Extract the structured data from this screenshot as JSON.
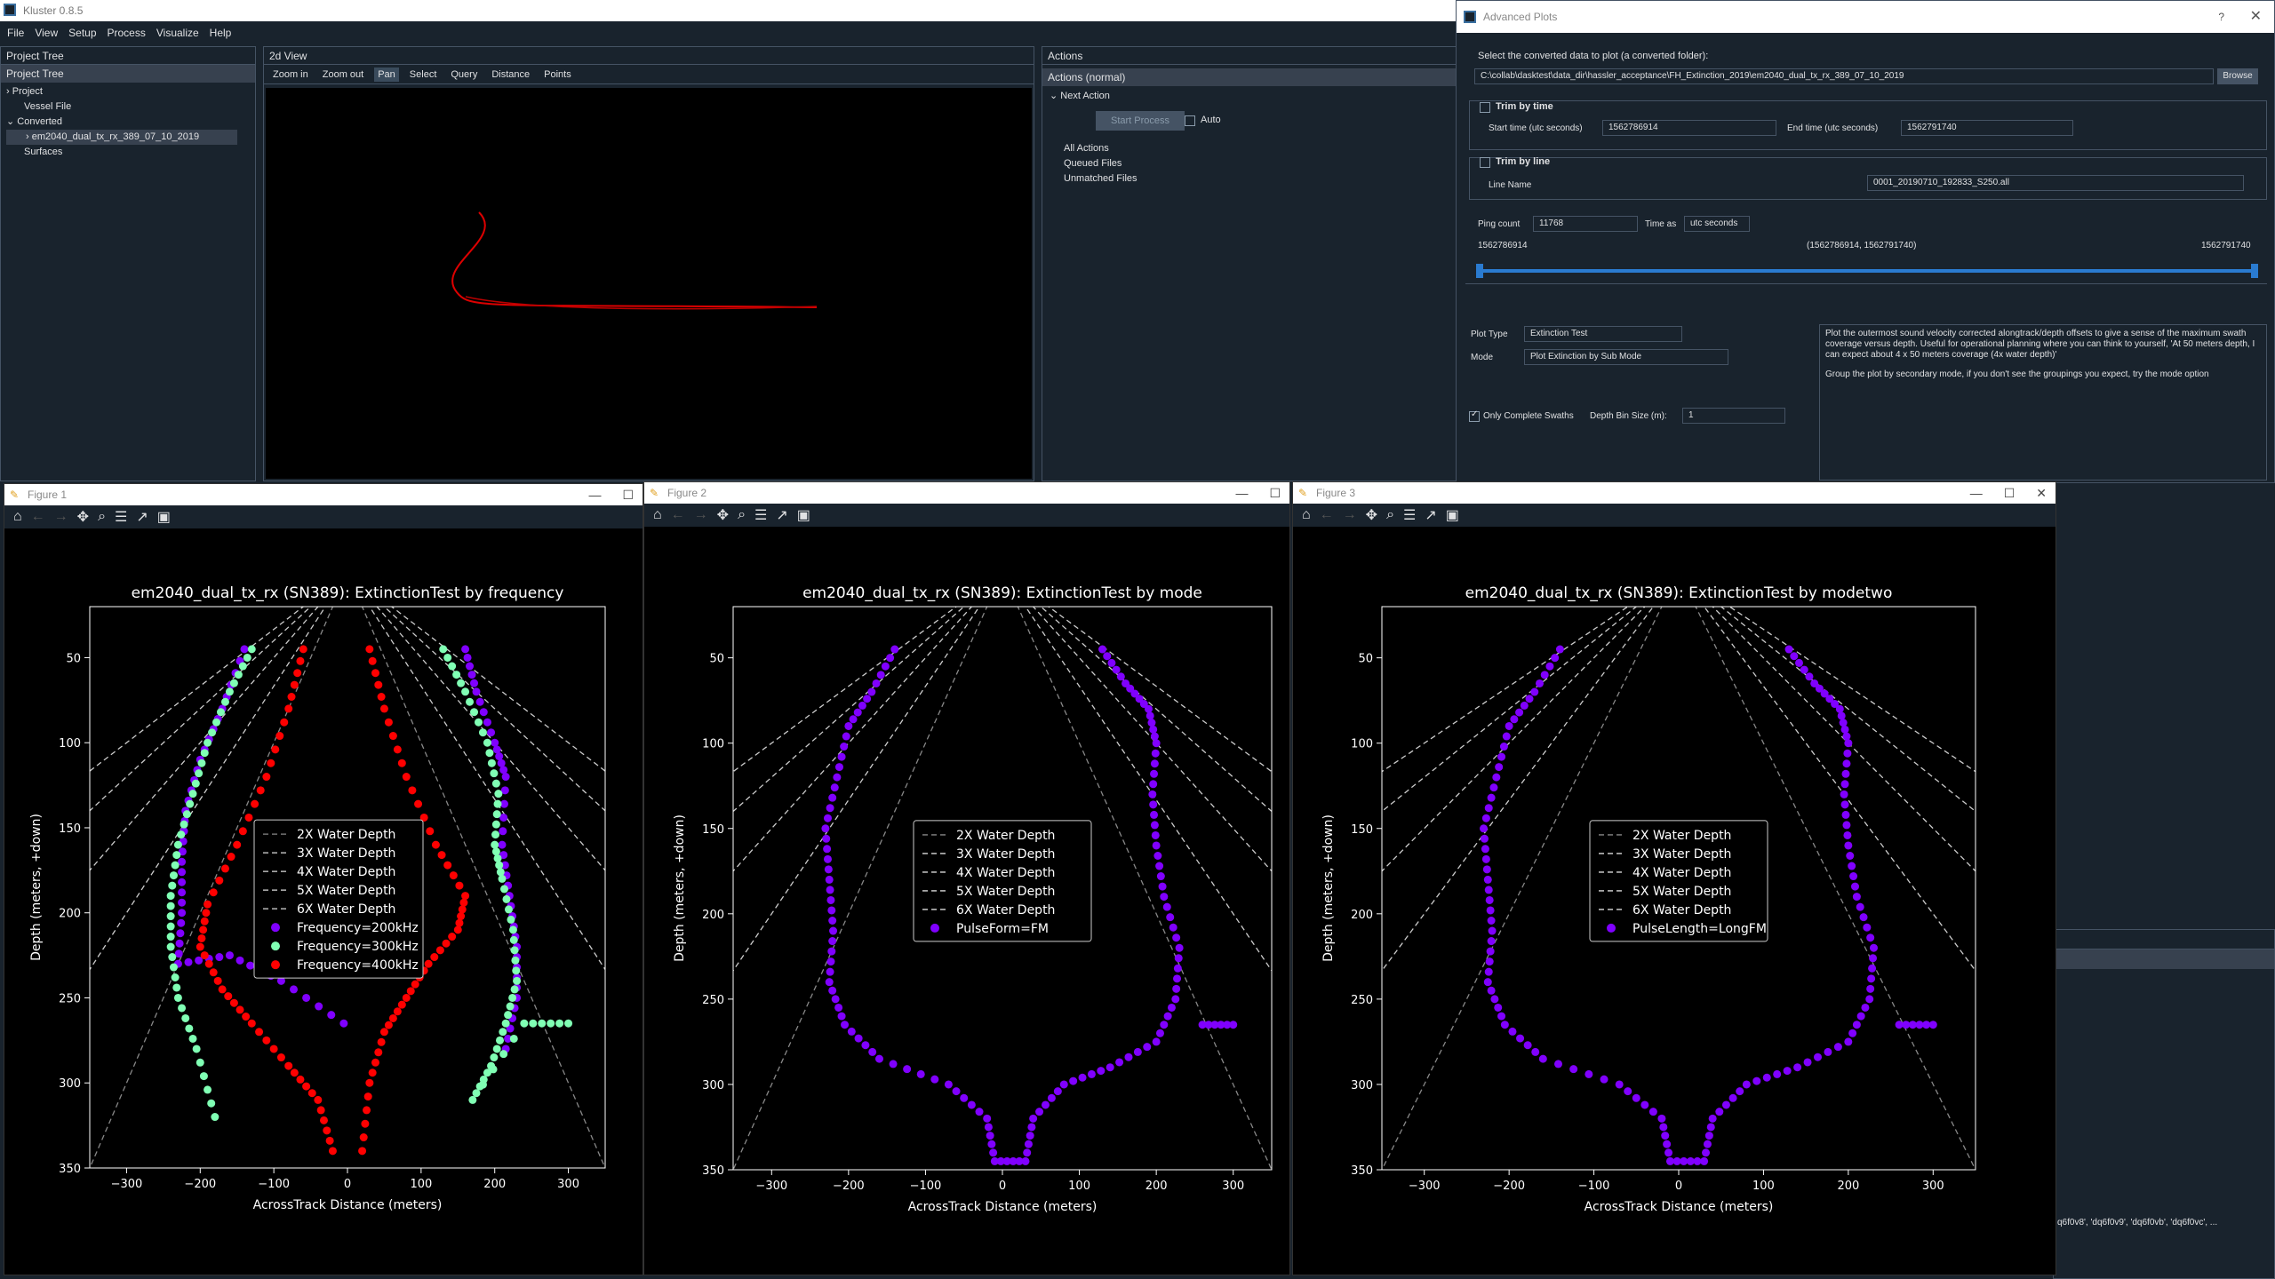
{
  "app": {
    "title": "Kluster 0.8.5"
  },
  "menu": [
    "File",
    "View",
    "Setup",
    "Process",
    "Visualize",
    "Help"
  ],
  "project_tree": {
    "pane_title": "Project Tree",
    "header": "Project Tree",
    "items": [
      "Project",
      "Vessel File",
      "Converted",
      "em2040_dual_tx_rx_389_07_10_2019",
      "Surfaces"
    ]
  },
  "view2d": {
    "pane_title": "2d View",
    "tools": [
      "Zoom in",
      "Zoom out",
      "Pan",
      "Select",
      "Query",
      "Distance",
      "Points"
    ]
  },
  "actions": {
    "pane_title": "Actions",
    "header": "Actions (normal)",
    "next_action": "Next Action",
    "start_button": "Start Process",
    "auto_label": "Auto",
    "items": [
      "All Actions",
      "Queued Files",
      "Unmatched Files"
    ]
  },
  "advanced": {
    "title": "Advanced Plots",
    "help": "?",
    "select_label": "Select the converted data to plot (a converted folder):",
    "path": "C:\\collab\\dasktest\\data_dir\\hassler_acceptance\\FH_Extinction_2019\\em2040_dual_tx_rx_389_07_10_2019",
    "browse": "Browse",
    "trim_time_label": "Trim by time",
    "start_time_label": "Start time (utc seconds)",
    "start_time": "1562786914",
    "end_time_label": "End time (utc seconds)",
    "end_time": "1562791740",
    "trim_line_label": "Trim by line",
    "line_name_label": "Line Name",
    "line_name": "0001_20190710_192833_S250.all",
    "ping_count_label": "Ping count",
    "ping_count": "11768",
    "time_as_label": "Time as",
    "time_as": "utc seconds",
    "range_min": "1562786914",
    "range_mid": "(1562786914, 1562791740)",
    "range_max": "1562791740",
    "plot_type_label": "Plot Type",
    "plot_type": "Extinction Test",
    "mode_label": "Mode",
    "mode": "Plot Extinction by Sub Mode",
    "complete_swaths": "Only Complete Swaths",
    "bin_size_label": "Depth Bin Size (m):",
    "bin_size": "1",
    "description": "Plot the outermost sound velocity corrected alongtrack/depth offsets to give a sense of the maximum swath coverage versus depth.  Useful for operational planning where you can think to yourself, 'At 50 meters depth, I can expect about 4 x 50 meters coverage (4x water depth)'",
    "description2": "Group the plot by secondary mode, if you don't see the groupings you expect, try the mode option"
  },
  "console_snippet": "q6f0v8', 'dq6f0v9', 'dq6f0vb', 'dq6f0vc', ...",
  "figures": [
    {
      "window_title": "Figure 1"
    },
    {
      "window_title": "Figure 2"
    },
    {
      "window_title": "Figure 3"
    }
  ],
  "chart_data": [
    {
      "type": "scatter",
      "title": "em2040_dual_tx_rx (SN389): ExtinctionTest by frequency",
      "xlabel": "AcrossTrack Distance (meters)",
      "ylabel": "Depth (meters, +down)",
      "xlim": [
        -350,
        350
      ],
      "ylim": [
        350,
        20
      ],
      "xticks": [
        -300,
        -200,
        -100,
        0,
        100,
        200,
        300
      ],
      "yticks": [
        50,
        100,
        150,
        200,
        250,
        300,
        350
      ],
      "legend": "center",
      "ref_lines": [
        {
          "name": "2X Water Depth",
          "k": 2
        },
        {
          "name": "3X Water Depth",
          "k": 3
        },
        {
          "name": "4X Water Depth",
          "k": 4
        },
        {
          "name": "5X Water Depth",
          "k": 5
        },
        {
          "name": "6X Water Depth",
          "k": 6
        }
      ],
      "series": [
        {
          "name": "Frequency=200kHz",
          "color": "#8000ff",
          "points": [
            [
              -140,
              45
            ],
            [
              -170,
              80
            ],
            [
              -200,
              110
            ],
            [
              -220,
              140
            ],
            [
              -225,
              170
            ],
            [
              -225,
              200
            ],
            [
              -230,
              230
            ],
            [
              -160,
              225
            ],
            [
              -90,
              240
            ],
            [
              -5,
              265
            ],
            [
              160,
              45
            ],
            [
              175,
              70
            ],
            [
              200,
              100
            ],
            [
              215,
              120
            ],
            [
              210,
              160
            ],
            [
              220,
              190
            ],
            [
              230,
              220
            ],
            [
              230,
              250
            ],
            [
              215,
              280
            ]
          ]
        },
        {
          "name": "Frequency=300kHz",
          "color": "#80ffb4",
          "points": [
            [
              -130,
              45
            ],
            [
              -160,
              70
            ],
            [
              -190,
              100
            ],
            [
              -210,
              130
            ],
            [
              -230,
              160
            ],
            [
              -240,
              190
            ],
            [
              -240,
              220
            ],
            [
              -230,
              250
            ],
            [
              -205,
              280
            ],
            [
              -180,
              320
            ],
            [
              130,
              45
            ],
            [
              160,
              70
            ],
            [
              190,
              100
            ],
            [
              205,
              130
            ],
            [
              200,
              160
            ],
            [
              210,
              180
            ],
            [
              225,
              210
            ],
            [
              230,
              240
            ],
            [
              215,
              265
            ],
            [
              195,
              290
            ],
            [
              170,
              310
            ],
            [
              240,
              265
            ],
            [
              300,
              265
            ]
          ]
        },
        {
          "name": "Frequency=400kHz",
          "color": "#ff0000",
          "points": [
            [
              -60,
              45
            ],
            [
              -80,
              80
            ],
            [
              -110,
              120
            ],
            [
              -150,
              160
            ],
            [
              -190,
              195
            ],
            [
              -200,
              220
            ],
            [
              -170,
              245
            ],
            [
              -130,
              265
            ],
            [
              -80,
              290
            ],
            [
              -40,
              310
            ],
            [
              -20,
              340
            ],
            [
              30,
              45
            ],
            [
              50,
              80
            ],
            [
              80,
              120
            ],
            [
              120,
              160
            ],
            [
              160,
              190
            ],
            [
              150,
              210
            ],
            [
              110,
              230
            ],
            [
              80,
              250
            ],
            [
              50,
              270
            ],
            [
              30,
              300
            ],
            [
              20,
              340
            ]
          ]
        }
      ]
    },
    {
      "type": "scatter",
      "title": "em2040_dual_tx_rx (SN389): ExtinctionTest by mode",
      "xlabel": "AcrossTrack Distance (meters)",
      "ylabel": "Depth (meters, +down)",
      "xlim": [
        -350,
        350
      ],
      "ylim": [
        350,
        20
      ],
      "xticks": [
        -300,
        -200,
        -100,
        0,
        100,
        200,
        300
      ],
      "yticks": [
        50,
        100,
        150,
        200,
        250,
        300,
        350
      ],
      "legend": "center",
      "ref_lines": [
        {
          "name": "2X Water Depth",
          "k": 2
        },
        {
          "name": "3X Water Depth",
          "k": 3
        },
        {
          "name": "4X Water Depth",
          "k": 4
        },
        {
          "name": "5X Water Depth",
          "k": 5
        },
        {
          "name": "6X Water Depth",
          "k": 6
        }
      ],
      "series": [
        {
          "name": "PulseForm=FM",
          "color": "#8000ff",
          "points": [
            [
              -140,
              45
            ],
            [
              -170,
              70
            ],
            [
              -200,
              90
            ],
            [
              -215,
              120
            ],
            [
              -230,
              150
            ],
            [
              -225,
              180
            ],
            [
              -220,
              210
            ],
            [
              -225,
              240
            ],
            [
              -205,
              265
            ],
            [
              -160,
              285
            ],
            [
              -70,
              300
            ],
            [
              -20,
              320
            ],
            [
              -10,
              345
            ],
            [
              30,
              345
            ],
            [
              40,
              320
            ],
            [
              80,
              300
            ],
            [
              140,
              290
            ],
            [
              200,
              275
            ],
            [
              225,
              250
            ],
            [
              230,
              220
            ],
            [
              210,
              190
            ],
            [
              200,
              160
            ],
            [
              195,
              130
            ],
            [
              200,
              100
            ],
            [
              190,
              80
            ],
            [
              160,
              65
            ],
            [
              130,
              45
            ],
            [
              260,
              265
            ],
            [
              300,
              265
            ]
          ]
        }
      ]
    },
    {
      "type": "scatter",
      "title": "em2040_dual_tx_rx (SN389): ExtinctionTest by modetwo",
      "xlabel": "AcrossTrack Distance (meters)",
      "ylabel": "Depth (meters, +down)",
      "xlim": [
        -350,
        350
      ],
      "ylim": [
        350,
        20
      ],
      "xticks": [
        -300,
        -200,
        -100,
        0,
        100,
        200,
        300
      ],
      "yticks": [
        50,
        100,
        150,
        200,
        250,
        300,
        350
      ],
      "legend": "center",
      "ref_lines": [
        {
          "name": "2X Water Depth",
          "k": 2
        },
        {
          "name": "3X Water Depth",
          "k": 3
        },
        {
          "name": "4X Water Depth",
          "k": 4
        },
        {
          "name": "5X Water Depth",
          "k": 5
        },
        {
          "name": "6X Water Depth",
          "k": 6
        }
      ],
      "series": [
        {
          "name": "PulseLength=LongFM",
          "color": "#8000ff",
          "points": [
            [
              -140,
              45
            ],
            [
              -170,
              70
            ],
            [
              -200,
              90
            ],
            [
              -215,
              120
            ],
            [
              -230,
              150
            ],
            [
              -225,
              180
            ],
            [
              -220,
              210
            ],
            [
              -225,
              240
            ],
            [
              -205,
              265
            ],
            [
              -160,
              285
            ],
            [
              -70,
              300
            ],
            [
              -20,
              320
            ],
            [
              -10,
              345
            ],
            [
              30,
              345
            ],
            [
              40,
              320
            ],
            [
              80,
              300
            ],
            [
              140,
              290
            ],
            [
              200,
              275
            ],
            [
              225,
              250
            ],
            [
              230,
              220
            ],
            [
              210,
              190
            ],
            [
              200,
              160
            ],
            [
              195,
              130
            ],
            [
              200,
              100
            ],
            [
              190,
              80
            ],
            [
              160,
              65
            ],
            [
              130,
              45
            ],
            [
              260,
              265
            ],
            [
              300,
              265
            ]
          ]
        }
      ]
    }
  ]
}
